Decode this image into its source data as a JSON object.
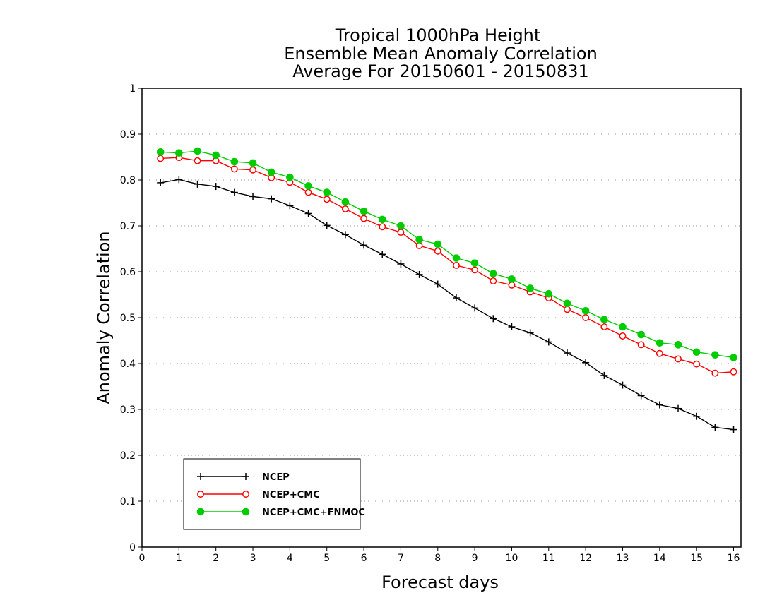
{
  "chart_data": {
    "type": "line",
    "title": [
      "Tropical 1000hPa Height",
      "Ensemble Mean Anomaly Correlation",
      "Average For 20150601 - 20150831"
    ],
    "xlabel": "Forecast days",
    "ylabel": "Anomaly Correlation",
    "xlim": [
      0,
      16.2
    ],
    "ylim": [
      0,
      1
    ],
    "xticks": [
      "0",
      "1",
      "2",
      "3",
      "4",
      "5",
      "6",
      "7",
      "8",
      "9",
      "10",
      "11",
      "12",
      "13",
      "14",
      "15",
      "16"
    ],
    "yticks": [
      "0",
      "0.1",
      "0.2",
      "0.3",
      "0.4",
      "0.5",
      "0.6",
      "0.7",
      "0.8",
      "0.9",
      "1"
    ],
    "grid": "dotted horizontal",
    "legend_position": "bottom-left",
    "x": [
      0.5,
      1,
      1.5,
      2,
      2.5,
      3,
      3.5,
      4,
      4.5,
      5,
      5.5,
      6,
      6.5,
      7,
      7.5,
      8,
      8.5,
      9,
      9.5,
      10,
      10.5,
      11,
      11.5,
      12,
      12.5,
      13,
      13.5,
      14,
      14.5,
      15,
      15.5,
      16
    ],
    "series": [
      {
        "name": "NCEP",
        "color": "#000000",
        "marker": "plus",
        "values": [
          0.794,
          0.801,
          0.791,
          0.786,
          0.773,
          0.764,
          0.759,
          0.744,
          0.727,
          0.701,
          0.681,
          0.658,
          0.638,
          0.617,
          0.594,
          0.573,
          0.543,
          0.521,
          0.498,
          0.48,
          0.467,
          0.447,
          0.423,
          0.402,
          0.374,
          0.353,
          0.33,
          0.31,
          0.302,
          0.285,
          0.261,
          0.256
        ]
      },
      {
        "name": "NCEP+CMC",
        "color": "#ff0000",
        "marker": "open-circle",
        "values": [
          0.847,
          0.849,
          0.842,
          0.842,
          0.824,
          0.822,
          0.805,
          0.795,
          0.773,
          0.758,
          0.737,
          0.716,
          0.698,
          0.686,
          0.657,
          0.645,
          0.614,
          0.604,
          0.58,
          0.571,
          0.556,
          0.543,
          0.518,
          0.5,
          0.48,
          0.46,
          0.441,
          0.422,
          0.41,
          0.399,
          0.379,
          0.382
        ]
      },
      {
        "name": "NCEP+CMC+FNMOC",
        "color": "#00cc00",
        "marker": "filled-circle",
        "values": [
          0.861,
          0.859,
          0.863,
          0.854,
          0.84,
          0.837,
          0.817,
          0.806,
          0.787,
          0.773,
          0.752,
          0.732,
          0.714,
          0.7,
          0.67,
          0.66,
          0.63,
          0.619,
          0.596,
          0.584,
          0.564,
          0.552,
          0.531,
          0.515,
          0.496,
          0.48,
          0.463,
          0.445,
          0.441,
          0.425,
          0.419,
          0.413
        ]
      }
    ]
  }
}
